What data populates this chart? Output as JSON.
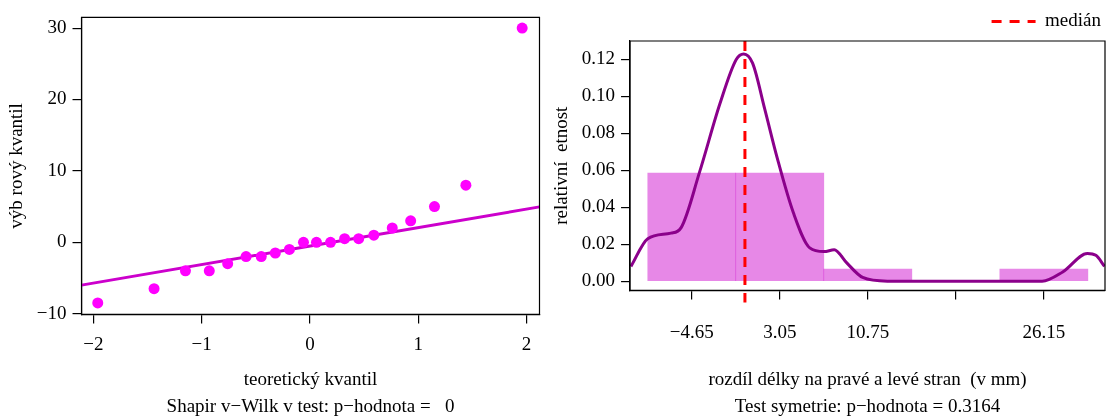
{
  "chart_data": [
    {
      "type": "scatter",
      "xlabel": "teoretický kvantil",
      "ylabel": "výb rový kvantil",
      "annotations": [
        "Shapir v−Wilk v test: p−hodnota =   0"
      ],
      "xlim": [
        -2.11,
        2.12
      ],
      "ylim": [
        -10.1,
        31.5
      ],
      "xticks": [
        -2,
        -1,
        0,
        1,
        2
      ],
      "yticks": [
        -10,
        0,
        10,
        20,
        30
      ],
      "grid": false,
      "series": [
        {
          "type": "scatter",
          "marker": "circle",
          "color": "#ff00ff",
          "x": [
            -1.96,
            -1.44,
            -1.15,
            -0.93,
            -0.76,
            -0.59,
            -0.45,
            -0.32,
            -0.19,
            -0.06,
            0.06,
            0.19,
            0.32,
            0.45,
            0.59,
            0.76,
            0.93,
            1.15,
            1.44,
            1.96
          ],
          "values": [
            -8.5,
            -6.5,
            -4,
            -4,
            -3,
            -2,
            -2,
            -1.5,
            -1,
            0,
            0,
            0,
            0.5,
            0.5,
            1,
            2,
            3,
            5,
            8,
            30
          ]
        },
        {
          "type": "line",
          "color": "#cc00cc",
          "x": [
            -2.11,
            2.12
          ],
          "values": [
            -6,
            4.96
          ]
        }
      ]
    },
    {
      "type": "histogram",
      "xlabel": "rozdíl délky na pravé a levé stran  (v mm)",
      "ylabel": "relativní  etnost",
      "annotations": [
        "Test symetrie: p−hodnota = 0.3164"
      ],
      "xlim": [
        -10.05,
        31.5
      ],
      "ylim": [
        -0.005,
        0.13
      ],
      "xticks": [
        -4.65,
        3.05,
        10.75,
        {
          "value": 18.45,
          "label": null
        },
        26.15
      ],
      "yticks": [
        {
          "value": 0,
          "label": "0.00"
        },
        0.02,
        0.04,
        0.06,
        0.08,
        {
          "value": 0.1,
          "label": "0.10"
        },
        0.12
      ],
      "grid": false,
      "legend": "top right",
      "color": "#cc00cc",
      "bins": [
        -8.5,
        -0.8,
        6.9,
        14.6,
        22.3,
        30
      ],
      "values": [
        0.0585,
        0.0585,
        0.0065,
        0,
        0.0065
      ],
      "series": [
        {
          "type": "line",
          "color": "#8b008b",
          "x": [
            -9.97,
            -8.5,
            -6.47,
            -5.58,
            -3.97,
            -2.19,
            -0.76,
            -0.11,
            0.67,
            1.74,
            2.81,
            4.24,
            5.67,
            6.92,
            7.81,
            8.89,
            10.3,
            12.46,
            16.03,
            26,
            27.8,
            29.96,
            30.7,
            31.46
          ],
          "values": [
            0.008,
            0.023,
            0.026,
            0.029,
            0.059,
            0.096,
            0.12,
            0.123,
            0.118,
            0.093,
            0.067,
            0.037,
            0.018,
            0.016,
            0.017,
            0.01,
            0.002,
            0,
            0,
            0,
            0.005,
            0.015,
            0.014,
            0.008
          ]
        }
      ],
      "ref_lines": [
        {
          "axis": "x",
          "value": 0,
          "label": "medián",
          "color": "#ff0000",
          "line_style": "dashed"
        }
      ]
    }
  ]
}
